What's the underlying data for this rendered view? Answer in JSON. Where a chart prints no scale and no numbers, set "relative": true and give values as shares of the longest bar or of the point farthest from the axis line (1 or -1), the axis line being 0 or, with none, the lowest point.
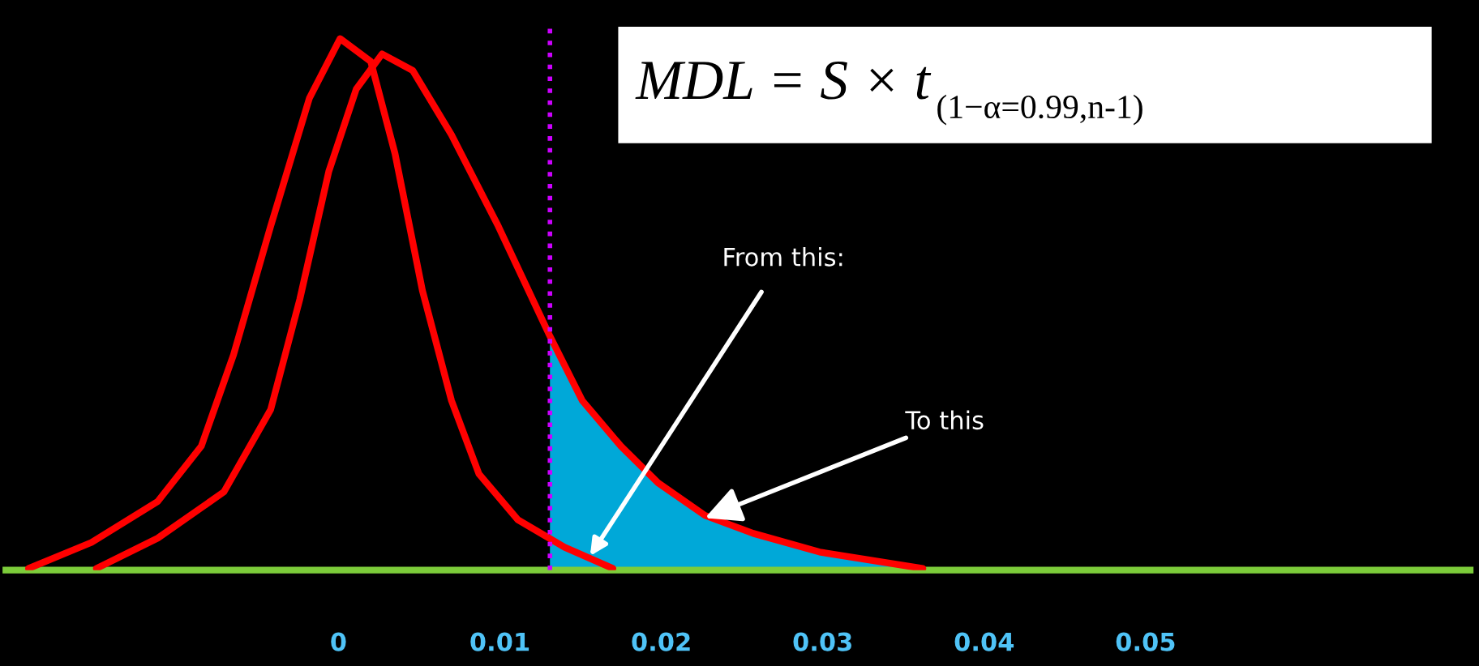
{
  "chart_data": {
    "type": "line",
    "relative": true,
    "xlim": [
      -0.0206,
      0.0701
    ],
    "xticks": [
      0,
      0.01,
      0.02,
      0.03,
      0.04,
      0.05
    ],
    "grid": false,
    "legend": false,
    "marker": "none",
    "line_style": "solid",
    "series": [
      {
        "type": "area",
        "color": "#00a8d8",
        "x": [
          0.0131,
          0.0151,
          0.0175,
          0.0198,
          0.0227,
          0.0257,
          0.0298,
          0.0362
        ],
        "values": [
          0.44,
          0.319,
          0.233,
          0.164,
          0.103,
          0.069,
          0.034,
          0.003
        ]
      },
      {
        "color": "#ff0000",
        "x": [
          -0.0192,
          -0.0153,
          -0.0112,
          -0.0085,
          -0.0065,
          -0.0042,
          -0.0018,
          0.0001,
          0.002,
          0.0035,
          0.0052,
          0.007,
          0.0087,
          0.0111,
          0.014,
          0.017
        ],
        "values": [
          0.003,
          0.052,
          0.129,
          0.233,
          0.405,
          0.647,
          0.888,
          1,
          0.957,
          0.784,
          0.526,
          0.319,
          0.181,
          0.095,
          0.043,
          0.003
        ]
      },
      {
        "color": "#ff0000",
        "x": [
          -0.015,
          -0.0112,
          -0.0071,
          -0.0042,
          -0.0024,
          -0.0006,
          0.0011,
          0.0027,
          0.0046,
          0.007,
          0.0099,
          0.0131,
          0.0151,
          0.0175,
          0.0198,
          0.0227,
          0.0257,
          0.0298,
          0.0362
        ],
        "values": [
          0.003,
          0.06,
          0.147,
          0.302,
          0.509,
          0.75,
          0.905,
          0.971,
          0.94,
          0.819,
          0.647,
          0.44,
          0.319,
          0.233,
          0.164,
          0.103,
          0.069,
          0.034,
          0.003
        ]
      }
    ],
    "ref_lines": [
      {
        "axis": "x",
        "value": 0.0131,
        "color": "#cc00ff",
        "line_style": "dotted"
      }
    ],
    "annotations": [
      "MDL = S × t$_{(1−α=0.99,n-1)}$",
      "From this:",
      {
        "text": "To this",
        "x": 0.0227,
        "y": 0.098
      }
    ]
  }
}
